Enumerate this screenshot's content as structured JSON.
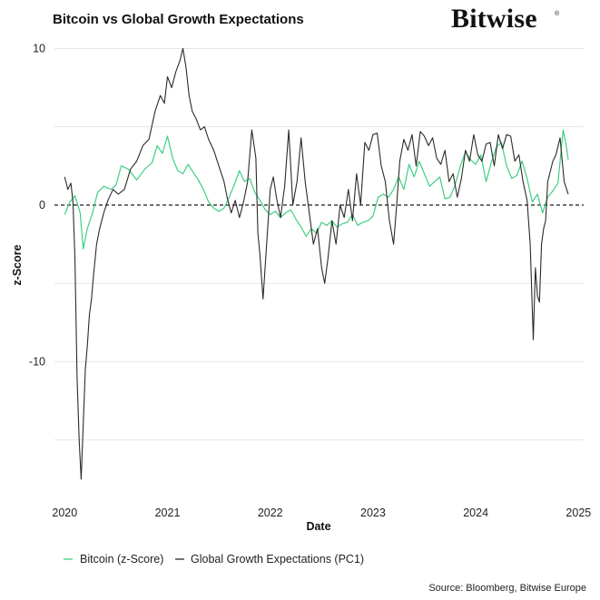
{
  "header": {
    "title": "Bitcoin vs Global Growth Expectations",
    "brand": "Bitwise",
    "brand_mark": "®"
  },
  "footer": {
    "source": "Source: Bloomberg, Bitwise Europe"
  },
  "colors": {
    "bitcoin": "#3ecf83",
    "growth": "#2b2b2b",
    "zero_line": "#000000",
    "grid": "#e6e6e6"
  },
  "chart_data": {
    "type": "line",
    "title": "Bitcoin vs Global Growth Expectations",
    "xlabel": "Date",
    "ylabel": "z-Score",
    "xlim": [
      2019.9,
      2025.05
    ],
    "ylim": [
      -18.5,
      10.2
    ],
    "x_ticks": [
      2020,
      2021,
      2022,
      2023,
      2024,
      2025
    ],
    "x_tick_labels": [
      "2020",
      "2021",
      "2022",
      "2023",
      "2024",
      "2025"
    ],
    "y_ticks": [
      -10,
      0,
      10
    ],
    "y_tick_labels": [
      "-10",
      "0",
      "10"
    ],
    "y_minor_gridlines": [
      -15,
      -5,
      5
    ],
    "zero_line": "dashed",
    "grid": true,
    "legend_position": "bottom-left",
    "series": [
      {
        "name": "Bitcoin (z-Score)",
        "color": "#3ecf83",
        "x": [
          2020.0,
          2020.05,
          2020.1,
          2020.15,
          2020.18,
          2020.22,
          2020.27,
          2020.32,
          2020.38,
          2020.45,
          2020.5,
          2020.55,
          2020.62,
          2020.7,
          2020.78,
          2020.85,
          2020.9,
          2020.95,
          2021.0,
          2021.05,
          2021.1,
          2021.15,
          2021.2,
          2021.25,
          2021.3,
          2021.35,
          2021.4,
          2021.45,
          2021.5,
          2021.55,
          2021.6,
          2021.65,
          2021.7,
          2021.75,
          2021.8,
          2021.85,
          2021.9,
          2021.95,
          2022.0,
          2022.05,
          2022.1,
          2022.15,
          2022.2,
          2022.25,
          2022.3,
          2022.35,
          2022.4,
          2022.45,
          2022.5,
          2022.55,
          2022.6,
          2022.65,
          2022.7,
          2022.75,
          2022.8,
          2022.85,
          2022.9,
          2022.95,
          2023.0,
          2023.05,
          2023.1,
          2023.15,
          2023.2,
          2023.25,
          2023.3,
          2023.35,
          2023.4,
          2023.45,
          2023.5,
          2023.55,
          2023.6,
          2023.65,
          2023.7,
          2023.75,
          2023.8,
          2023.85,
          2023.9,
          2023.95,
          2024.0,
          2024.05,
          2024.1,
          2024.15,
          2024.2,
          2024.25,
          2024.3,
          2024.35,
          2024.4,
          2024.45,
          2024.5,
          2024.55,
          2024.6,
          2024.65,
          2024.7,
          2024.75,
          2024.8,
          2024.85,
          2024.88,
          2024.9
        ],
        "values": [
          -0.6,
          0.2,
          0.6,
          -0.5,
          -2.8,
          -1.5,
          -0.5,
          0.8,
          1.2,
          1.0,
          1.3,
          2.5,
          2.3,
          1.6,
          2.3,
          2.7,
          3.8,
          3.3,
          4.4,
          3.0,
          2.2,
          2.0,
          2.6,
          2.1,
          1.6,
          1.0,
          0.2,
          -0.2,
          -0.4,
          -0.2,
          0.5,
          1.3,
          2.2,
          1.5,
          1.7,
          0.8,
          0.3,
          -0.3,
          -0.6,
          -0.4,
          -0.8,
          -0.5,
          -0.3,
          -0.9,
          -1.4,
          -2.0,
          -1.5,
          -1.8,
          -1.1,
          -1.3,
          -1.0,
          -1.4,
          -1.2,
          -1.1,
          -0.6,
          -1.3,
          -1.1,
          -1.0,
          -0.7,
          0.5,
          0.7,
          0.5,
          1.0,
          1.8,
          1.0,
          2.6,
          1.8,
          2.8,
          2.0,
          1.2,
          1.5,
          1.8,
          0.4,
          0.5,
          1.3,
          2.5,
          3.4,
          2.9,
          2.6,
          3.2,
          1.5,
          2.7,
          3.7,
          4.0,
          2.5,
          1.7,
          1.9,
          2.8,
          1.7,
          0.2,
          0.7,
          -0.5,
          0.5,
          0.9,
          1.4,
          4.8,
          3.8,
          2.9
        ]
      },
      {
        "name": "Global Growth Expectations (PC1)",
        "color": "#2b2b2b",
        "x": [
          2020.0,
          2020.03,
          2020.06,
          2020.08,
          2020.1,
          2020.12,
          2020.14,
          2020.16,
          2020.18,
          2020.2,
          2020.22,
          2020.24,
          2020.26,
          2020.28,
          2020.31,
          2020.34,
          2020.38,
          2020.42,
          2020.47,
          2020.52,
          2020.58,
          2020.64,
          2020.7,
          2020.76,
          2020.82,
          2020.88,
          2020.93,
          2020.97,
          2021.0,
          2021.04,
          2021.08,
          2021.12,
          2021.15,
          2021.18,
          2021.21,
          2021.24,
          2021.28,
          2021.32,
          2021.36,
          2021.4,
          2021.45,
          2021.5,
          2021.55,
          2021.58,
          2021.62,
          2021.66,
          2021.7,
          2021.74,
          2021.78,
          2021.82,
          2021.86,
          2021.88,
          2021.9,
          2021.93,
          2021.97,
          2022.0,
          2022.03,
          2022.06,
          2022.1,
          2022.14,
          2022.18,
          2022.22,
          2022.26,
          2022.3,
          2022.34,
          2022.38,
          2022.42,
          2022.46,
          2022.5,
          2022.53,
          2022.56,
          2022.6,
          2022.64,
          2022.68,
          2022.72,
          2022.76,
          2022.8,
          2022.84,
          2022.88,
          2022.92,
          2022.96,
          2023.0,
          2023.04,
          2023.08,
          2023.12,
          2023.16,
          2023.2,
          2023.23,
          2023.26,
          2023.3,
          2023.34,
          2023.38,
          2023.42,
          2023.46,
          2023.5,
          2023.54,
          2023.58,
          2023.62,
          2023.66,
          2023.7,
          2023.74,
          2023.78,
          2023.82,
          2023.86,
          2023.9,
          2023.94,
          2023.98,
          2024.02,
          2024.06,
          2024.1,
          2024.14,
          2024.18,
          2024.22,
          2024.26,
          2024.3,
          2024.34,
          2024.38,
          2024.42,
          2024.46,
          2024.5,
          2024.53,
          2024.56,
          2024.58,
          2024.6,
          2024.62,
          2024.64,
          2024.66,
          2024.68,
          2024.7,
          2024.72,
          2024.75,
          2024.78,
          2024.82,
          2024.86,
          2024.9
        ],
        "values": [
          1.8,
          1.0,
          1.4,
          0.2,
          -3.5,
          -11.0,
          -15.0,
          -17.5,
          -14.0,
          -10.5,
          -9.0,
          -7.0,
          -6.0,
          -4.5,
          -2.5,
          -1.5,
          -0.5,
          0.3,
          1.0,
          0.7,
          1.0,
          2.3,
          2.8,
          3.8,
          4.2,
          6.0,
          7.0,
          6.5,
          8.2,
          7.5,
          8.5,
          9.2,
          10.0,
          8.8,
          7.0,
          6.0,
          5.5,
          4.8,
          5.0,
          4.2,
          3.5,
          2.5,
          1.5,
          0.5,
          -0.5,
          0.3,
          -0.8,
          0.2,
          1.5,
          4.8,
          3.0,
          -1.8,
          -3.2,
          -6.0,
          -2.0,
          1.0,
          1.8,
          0.5,
          -0.8,
          1.2,
          4.8,
          0.0,
          1.5,
          4.3,
          1.5,
          -0.5,
          -2.5,
          -1.5,
          -4.0,
          -5.0,
          -3.5,
          -1.0,
          -2.5,
          0.0,
          -0.8,
          1.0,
          -1.0,
          2.0,
          0.0,
          4.0,
          3.5,
          4.5,
          4.6,
          2.5,
          1.5,
          -1.0,
          -2.5,
          0.0,
          2.8,
          4.2,
          3.5,
          4.5,
          2.5,
          4.7,
          4.4,
          3.8,
          4.3,
          3.0,
          2.6,
          3.5,
          1.5,
          2.0,
          0.5,
          1.7,
          3.5,
          2.8,
          4.5,
          3.2,
          2.8,
          3.9,
          4.0,
          2.5,
          4.5,
          3.6,
          4.5,
          4.4,
          2.8,
          3.2,
          1.5,
          0.3,
          -2.5,
          -8.6,
          -4.0,
          -5.8,
          -6.2,
          -2.5,
          -1.5,
          -1.0,
          1.5,
          2.0,
          2.8,
          3.2,
          4.3,
          1.5,
          0.7
        ]
      }
    ]
  }
}
